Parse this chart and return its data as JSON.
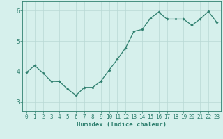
{
  "x": [
    0,
    1,
    2,
    3,
    4,
    5,
    6,
    7,
    8,
    9,
    10,
    11,
    12,
    13,
    14,
    15,
    16,
    17,
    18,
    19,
    20,
    21,
    22,
    23
  ],
  "y": [
    3.97,
    4.2,
    3.95,
    3.68,
    3.67,
    3.42,
    3.22,
    3.48,
    3.48,
    3.68,
    4.05,
    4.4,
    4.78,
    5.32,
    5.38,
    5.75,
    5.95,
    5.72,
    5.72,
    5.72,
    5.52,
    5.72,
    5.97,
    5.62
  ],
  "xlabel": "Humidex (Indice chaleur)",
  "ylim": [
    2.7,
    6.3
  ],
  "xlim": [
    -0.5,
    23.5
  ],
  "yticks": [
    3,
    4,
    5,
    6
  ],
  "xticks": [
    0,
    1,
    2,
    3,
    4,
    5,
    6,
    7,
    8,
    9,
    10,
    11,
    12,
    13,
    14,
    15,
    16,
    17,
    18,
    19,
    20,
    21,
    22,
    23
  ],
  "line_color": "#2e7f6e",
  "marker": "D",
  "marker_size": 1.8,
  "bg_color": "#d6f0ec",
  "grid_color": "#b8d8d4",
  "axis_color": "#2e7f6e",
  "tick_color": "#2e7f6e",
  "label_color": "#2e7f6e",
  "xlabel_fontsize": 6.5,
  "tick_fontsize": 5.5,
  "linewidth": 0.9
}
